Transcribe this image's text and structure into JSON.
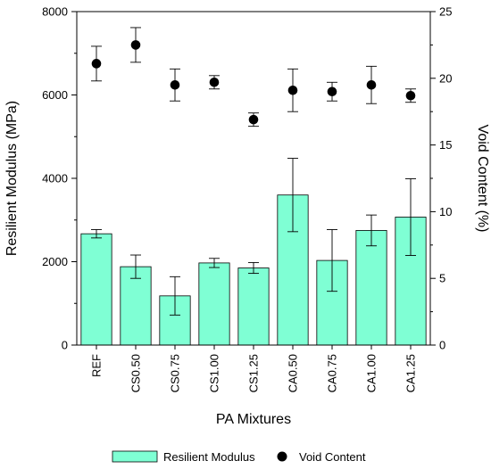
{
  "chart_data": {
    "type": "bar",
    "title": "",
    "xlabel": "PA Mixtures",
    "ylabel_left": "Resilient Modulus (MPa)",
    "ylabel_right": "Void Content (%)",
    "categories": [
      "REF",
      "CS0.50",
      "CS0.75",
      "CS1.00",
      "CS1.25",
      "CA0.50",
      "CA0.75",
      "CA1.00",
      "CA1.25"
    ],
    "ylim_left": [
      0,
      8000
    ],
    "yticks_left": [
      0,
      2000,
      4000,
      6000,
      8000
    ],
    "ylim_right": [
      0,
      25
    ],
    "yticks_right": [
      0,
      5,
      10,
      15,
      20,
      25
    ],
    "grid": false,
    "legend_position": "bottom",
    "series": [
      {
        "name": "Resilient Modulus",
        "kind": "bar",
        "axis": "left",
        "color": "#7fffd4",
        "values": [
          2670,
          1880,
          1180,
          1970,
          1850,
          3600,
          2030,
          2750,
          3070
        ],
        "error": [
          100,
          280,
          460,
          110,
          130,
          880,
          740,
          370,
          920
        ]
      },
      {
        "name": "Void Content",
        "kind": "scatter",
        "axis": "right",
        "color": "#000000",
        "values": [
          21.1,
          22.5,
          19.5,
          19.7,
          16.9,
          19.1,
          19.0,
          19.5,
          18.7
        ],
        "error": [
          1.3,
          1.3,
          1.2,
          0.5,
          0.5,
          1.6,
          0.7,
          1.4,
          0.5
        ]
      }
    ]
  }
}
